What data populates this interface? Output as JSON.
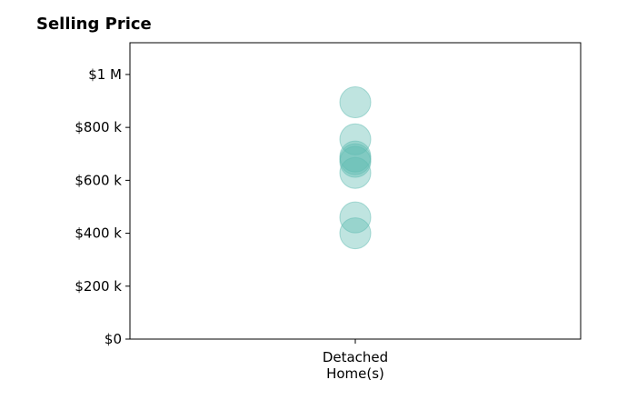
{
  "chart_data": {
    "type": "scatter",
    "title": "Selling Price",
    "xlabel": "",
    "ylabel": "",
    "categories": [
      "Detached\nHome(s)"
    ],
    "series": [
      {
        "category": "Detached\nHome(s)",
        "values": [
          895000,
          755000,
          690000,
          680000,
          670000,
          628000,
          460000,
          400000
        ]
      }
    ],
    "ylim": [
      0,
      1120000
    ],
    "yticks": [
      0,
      200000,
      400000,
      600000,
      800000,
      1000000
    ],
    "ytick_labels": [
      "$0",
      "$200 k",
      "$400 k",
      "$600 k",
      "$800 k",
      "$1 M"
    ],
    "grid": false,
    "marker_color": "#5fbcb2",
    "marker_opacity": 0.4
  }
}
